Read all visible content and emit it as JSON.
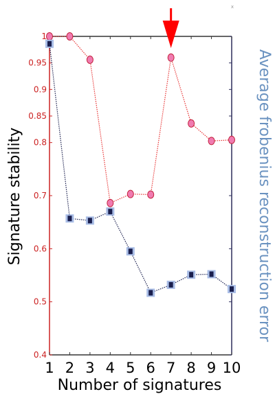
{
  "chart_data": {
    "type": "line",
    "title": "",
    "xlabel": "Number of signatures",
    "ylabel": "Signature stability",
    "ylabel_right": "Average frobenius reconstruction error",
    "corner_mark": "x",
    "x": [
      1,
      2,
      3,
      4,
      5,
      6,
      7,
      8,
      9,
      10
    ],
    "xticks": [
      "1",
      "2",
      "3",
      "4",
      "5",
      "6",
      "7",
      "8",
      "9",
      "10"
    ],
    "ylim": [
      0.4,
      1.0
    ],
    "yticks": [
      {
        "value": 1.0,
        "label": "1"
      },
      {
        "value": 0.95,
        "label": "0.95"
      },
      {
        "value": 0.9,
        "label": "0.9"
      },
      {
        "value": 0.85,
        "label": "0.85"
      },
      {
        "value": 0.8,
        "label": "0.8"
      },
      {
        "value": 0.7,
        "label": "0.7"
      },
      {
        "value": 0.6,
        "label": "0.6"
      },
      {
        "value": 0.5,
        "label": "0.5"
      },
      {
        "value": 0.4,
        "label": "0.4"
      }
    ],
    "series": [
      {
        "axis": "left",
        "color": "#e83232",
        "marker": "circle",
        "values": [
          1.0,
          1.0,
          0.956,
          0.686,
          0.703,
          0.702,
          0.96,
          0.836,
          0.803,
          0.805
        ]
      },
      {
        "axis": "right",
        "color": "#1a1f4e",
        "marker": "square",
        "values": [
          0.986,
          0.657,
          0.653,
          0.67,
          0.595,
          0.517,
          0.532,
          0.551,
          0.552,
          0.524
        ]
      }
    ],
    "annotation": {
      "type": "arrow",
      "x": 7,
      "color": "#ff0000"
    },
    "colors": {
      "left_axis": "#cc2222",
      "right_axis": "#2c2c5a",
      "right_label": "#6a92c0"
    }
  }
}
